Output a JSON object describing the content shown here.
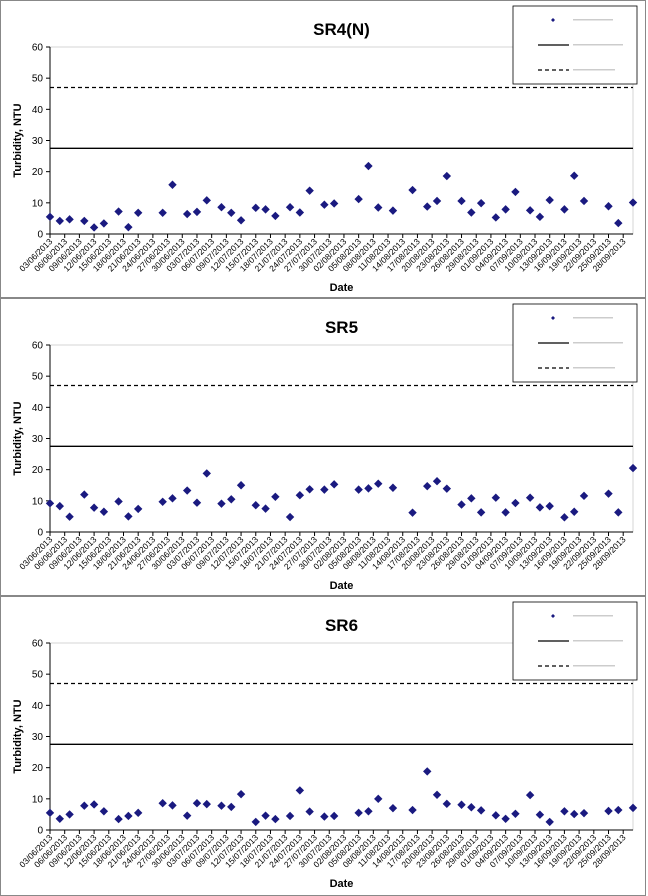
{
  "x_ticks": [
    "03/06/2013",
    "06/06/2013",
    "09/06/2013",
    "12/06/2013",
    "15/06/2013",
    "18/06/2013",
    "21/06/2013",
    "24/06/2013",
    "27/06/2013",
    "30/06/2013",
    "03/07/2013",
    "06/07/2013",
    "09/07/2013",
    "12/07/2013",
    "15/07/2013",
    "18/07/2013",
    "21/07/2013",
    "24/07/2013",
    "27/07/2013",
    "30/07/2013",
    "02/08/2013",
    "05/08/2013",
    "08/08/2013",
    "11/08/2013",
    "14/08/2013",
    "17/08/2013",
    "20/08/2013",
    "23/08/2013",
    "26/08/2013",
    "29/08/2013",
    "01/09/2013",
    "04/09/2013",
    "07/09/2013",
    "10/09/2013",
    "13/09/2013",
    "16/09/2013",
    "19/09/2013",
    "22/09/2013",
    "25/09/2013",
    "28/09/2013"
  ],
  "chart_data": [
    {
      "type": "scatter",
      "title": "SR4(N)",
      "xlabel": "Date",
      "ylabel": "Turbidity, NTU",
      "ylim": [
        0,
        60
      ],
      "yticks": [
        0,
        10,
        20,
        30,
        40,
        50,
        60
      ],
      "x_range": [
        "03/06/2013",
        "30/09/2013"
      ],
      "series_color": "#1a1a80",
      "legend_position": "top-right",
      "reference_lines": [
        {
          "style": "solid",
          "value": 27.5
        },
        {
          "style": "dashed",
          "value": 47
        }
      ],
      "x": [
        "03/06/2013",
        "05/06/2013",
        "07/06/2013",
        "10/06/2013",
        "12/06/2013",
        "14/06/2013",
        "17/06/2013",
        "19/06/2013",
        "21/06/2013",
        "26/06/2013",
        "28/06/2013",
        "01/07/2013",
        "03/07/2013",
        "05/07/2013",
        "08/07/2013",
        "10/07/2013",
        "12/07/2013",
        "15/07/2013",
        "17/07/2013",
        "19/07/2013",
        "22/07/2013",
        "24/07/2013",
        "26/07/2013",
        "29/07/2013",
        "31/07/2013",
        "05/08/2013",
        "07/08/2013",
        "09/08/2013",
        "12/08/2013",
        "16/08/2013",
        "19/08/2013",
        "21/08/2013",
        "23/08/2013",
        "26/08/2013",
        "28/08/2013",
        "30/08/2013",
        "02/09/2013",
        "04/09/2013",
        "06/09/2013",
        "09/09/2013",
        "11/09/2013",
        "13/09/2013",
        "16/09/2013",
        "18/09/2013",
        "20/09/2013",
        "25/09/2013",
        "27/09/2013",
        "30/09/2013"
      ],
      "y": [
        5.5,
        4.2,
        4.7,
        4.2,
        2.1,
        3.4,
        7.2,
        2.2,
        6.8,
        6.8,
        15.8,
        6.4,
        7.1,
        10.8,
        8.6,
        6.8,
        4.4,
        8.4,
        7.9,
        5.8,
        8.6,
        6.9,
        13.9,
        9.4,
        9.8,
        11.2,
        21.8,
        8.5,
        7.5,
        14.1,
        8.8,
        10.6,
        18.6,
        10.6,
        6.9,
        9.9,
        5.3,
        7.9,
        13.5,
        7.6,
        5.5,
        10.9,
        7.9,
        18.7,
        10.6,
        8.9,
        3.5,
        10.1
      ]
    },
    {
      "type": "scatter",
      "title": "SR5",
      "xlabel": "Date",
      "ylabel": "Turbidity, NTU",
      "ylim": [
        0,
        60
      ],
      "yticks": [
        0,
        10,
        20,
        30,
        40,
        50,
        60
      ],
      "x_range": [
        "03/06/2013",
        "30/09/2013"
      ],
      "series_color": "#1a1a80",
      "legend_position": "top-right",
      "reference_lines": [
        {
          "style": "solid",
          "value": 27.5
        },
        {
          "style": "dashed",
          "value": 47
        }
      ],
      "x": [
        "03/06/2013",
        "05/06/2013",
        "07/06/2013",
        "10/06/2013",
        "12/06/2013",
        "14/06/2013",
        "17/06/2013",
        "19/06/2013",
        "21/06/2013",
        "26/06/2013",
        "28/06/2013",
        "01/07/2013",
        "03/07/2013",
        "05/07/2013",
        "08/07/2013",
        "10/07/2013",
        "12/07/2013",
        "15/07/2013",
        "17/07/2013",
        "19/07/2013",
        "22/07/2013",
        "24/07/2013",
        "26/07/2013",
        "29/07/2013",
        "31/07/2013",
        "05/08/2013",
        "07/08/2013",
        "09/08/2013",
        "12/08/2013",
        "16/08/2013",
        "19/08/2013",
        "21/08/2013",
        "23/08/2013",
        "26/08/2013",
        "28/08/2013",
        "30/08/2013",
        "02/09/2013",
        "04/09/2013",
        "06/09/2013",
        "09/09/2013",
        "11/09/2013",
        "13/09/2013",
        "16/09/2013",
        "18/09/2013",
        "20/09/2013",
        "25/09/2013",
        "27/09/2013",
        "30/09/2013"
      ],
      "y": [
        9.2,
        8.3,
        4.9,
        12.0,
        7.8,
        6.5,
        9.8,
        5.0,
        7.4,
        9.7,
        10.8,
        13.3,
        9.4,
        18.8,
        9.1,
        10.5,
        15.0,
        8.6,
        7.5,
        11.3,
        4.8,
        11.8,
        13.7,
        13.6,
        15.3,
        13.6,
        14.0,
        15.5,
        14.2,
        6.2,
        14.7,
        16.3,
        13.9,
        8.8,
        10.8,
        6.3,
        11.0,
        6.3,
        9.3,
        11.0,
        7.9,
        8.3,
        4.7,
        6.5,
        11.6,
        12.3,
        6.3,
        20.5
      ]
    },
    {
      "type": "scatter",
      "title": "SR6",
      "xlabel": "Date",
      "ylabel": "Turbidity, NTU",
      "ylim": [
        0,
        60
      ],
      "yticks": [
        0,
        10,
        20,
        30,
        40,
        50,
        60
      ],
      "x_range": [
        "03/06/2013",
        "30/09/2013"
      ],
      "series_color": "#1a1a80",
      "legend_position": "top-right",
      "reference_lines": [
        {
          "style": "solid",
          "value": 27.5
        },
        {
          "style": "dashed",
          "value": 47
        }
      ],
      "x": [
        "03/06/2013",
        "05/06/2013",
        "07/06/2013",
        "10/06/2013",
        "12/06/2013",
        "14/06/2013",
        "17/06/2013",
        "19/06/2013",
        "21/06/2013",
        "26/06/2013",
        "28/06/2013",
        "01/07/2013",
        "03/07/2013",
        "05/07/2013",
        "08/07/2013",
        "10/07/2013",
        "12/07/2013",
        "15/07/2013",
        "17/07/2013",
        "19/07/2013",
        "22/07/2013",
        "24/07/2013",
        "26/07/2013",
        "29/07/2013",
        "31/07/2013",
        "05/08/2013",
        "07/08/2013",
        "09/08/2013",
        "12/08/2013",
        "16/08/2013",
        "19/08/2013",
        "21/08/2013",
        "23/08/2013",
        "26/08/2013",
        "28/08/2013",
        "30/08/2013",
        "02/09/2013",
        "04/09/2013",
        "06/09/2013",
        "09/09/2013",
        "11/09/2013",
        "13/09/2013",
        "16/09/2013",
        "18/09/2013",
        "20/09/2013",
        "25/09/2013",
        "27/09/2013",
        "30/09/2013"
      ],
      "y": [
        5.5,
        3.6,
        5.0,
        7.8,
        8.2,
        6.0,
        3.5,
        4.5,
        5.5,
        8.6,
        7.9,
        4.6,
        8.6,
        8.3,
        7.8,
        7.4,
        11.5,
        2.6,
        4.6,
        3.5,
        4.5,
        12.7,
        5.9,
        4.3,
        4.5,
        5.5,
        6.0,
        10.0,
        7.0,
        6.4,
        18.8,
        11.3,
        8.4,
        8.1,
        7.3,
        6.3,
        4.7,
        3.6,
        5.2,
        11.2,
        4.9,
        2.6,
        6.0,
        5.1,
        5.4,
        6.1,
        6.4,
        7.1
      ]
    }
  ]
}
